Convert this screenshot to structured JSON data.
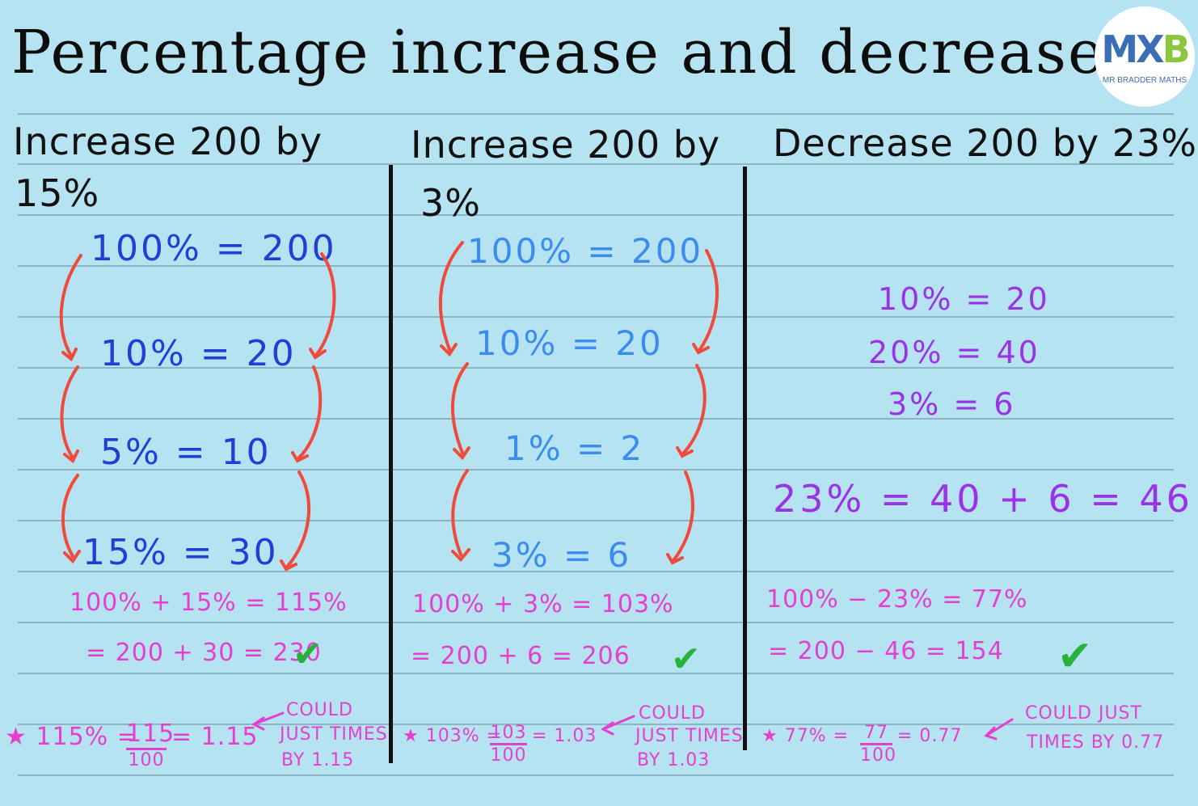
{
  "title": "Percentage increase and decrease",
  "logo": {
    "mark_left": "MX",
    "mark_right": "B",
    "text": "MR BRADDER MATHS"
  },
  "col1": {
    "heading_line1": "Increase 200 by",
    "heading_line2": "15%",
    "steps": [
      "100% = 200",
      "10% = 20",
      "5% = 10",
      "15% = 30"
    ],
    "calc1": "100% + 15% = 115%",
    "calc2": "= 200 + 30 = 230",
    "tick": "✔",
    "note_star": "★ 115% =",
    "note_num": "115",
    "note_den": "100",
    "note_result": "= 1.15",
    "note_comment": [
      "COULD",
      "JUST TIMES",
      "BY 1.15"
    ]
  },
  "col2": {
    "heading_line1": "Increase 200 by",
    "heading_line2": "3%",
    "steps": [
      "100% = 200",
      "10% = 20",
      "1% = 2",
      "3% = 6"
    ],
    "calc1": "100% + 3% = 103%",
    "calc2": "= 200 + 6 = 206",
    "tick": "✔",
    "note_star": "★ 103% =",
    "note_num": "103",
    "note_den": "100",
    "note_result": "= 1.03",
    "note_comment": [
      "COULD",
      "JUST TIMES",
      "BY 1.03"
    ]
  },
  "col3": {
    "heading_line1": "Decrease 200 by 23%.",
    "steps": [
      "10% = 20",
      "20% = 40",
      "3% = 6"
    ],
    "total": "23% = 40 + 6 = 46",
    "calc1": "100% − 23% = 77%",
    "calc2": "= 200 − 46 = 154",
    "tick": "✔",
    "note_star": "★ 77% =",
    "note_num": "77",
    "note_den": "100",
    "note_result": "= 0.77",
    "note_comment": [
      "COULD JUST",
      "TIMES BY 0.77"
    ]
  },
  "colors": {
    "background": "#b6e3f1",
    "dark_blue": "#1f3fd6",
    "light_blue": "#3c8cf0",
    "purple": "#9a32e6",
    "pink": "#e43fcf",
    "red_arrow": "#f04a3a",
    "green_tick": "#27b33a"
  }
}
